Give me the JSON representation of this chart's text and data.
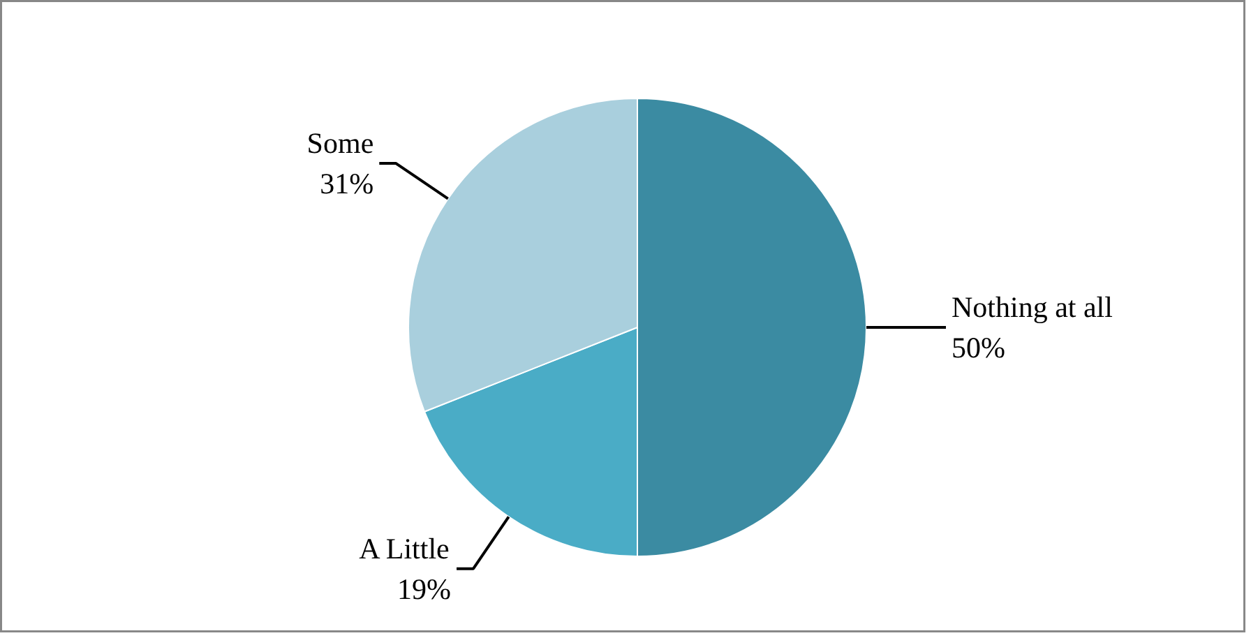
{
  "chart_data": {
    "type": "pie",
    "categories": [
      "Nothing at all",
      "A Little",
      "Some"
    ],
    "values": [
      50,
      19,
      31
    ],
    "colors": [
      "#3b8ba2",
      "#4aacc6",
      "#a9cfdd"
    ],
    "value_labels": [
      "50%",
      "19%",
      "31%"
    ]
  }
}
